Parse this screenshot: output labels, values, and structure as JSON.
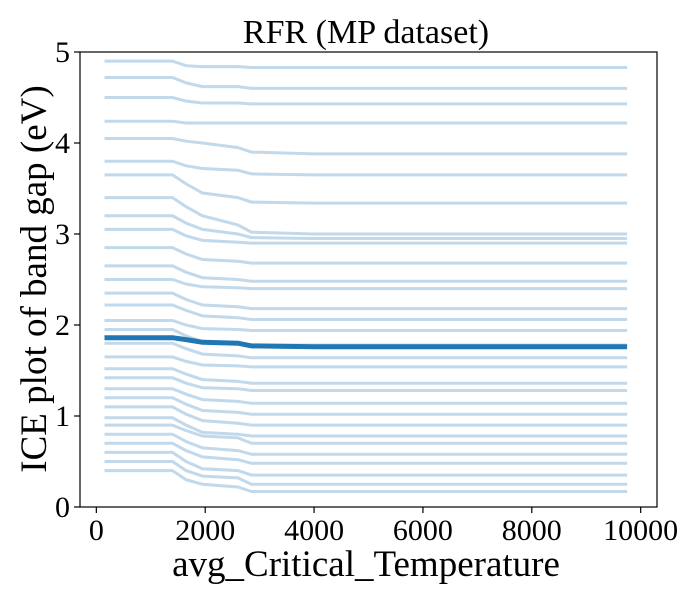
{
  "chart_data": {
    "type": "line",
    "title": "RFR (MP dataset)",
    "xlabel": "avg_Critical_Temperature",
    "ylabel": "ICE plot of band gap (eV)",
    "xlim": [
      -300,
      10300
    ],
    "ylim": [
      0,
      5
    ],
    "x_ticks": [
      0,
      2000,
      4000,
      6000,
      8000,
      10000
    ],
    "x_tick_labels": [
      "0",
      "2000",
      "4000",
      "6000",
      "8000",
      "10000"
    ],
    "y_ticks": [
      0,
      1,
      2,
      3,
      4,
      5
    ],
    "y_tick_labels": [
      "0",
      "1",
      "2",
      "3",
      "4",
      "5"
    ],
    "grid": false,
    "ice_color": "#1f77b4",
    "average_color": "#1f77b4",
    "x": [
      150,
      1400,
      1650,
      1950,
      2600,
      2850,
      4000,
      9750
    ],
    "average_series": {
      "values": [
        1.86,
        1.86,
        1.84,
        1.81,
        1.8,
        1.77,
        1.76,
        1.76
      ]
    },
    "ice_series": [
      {
        "values": [
          4.9,
          4.9,
          4.85,
          4.84,
          4.84,
          4.83,
          4.83,
          4.83
        ]
      },
      {
        "values": [
          4.72,
          4.72,
          4.66,
          4.62,
          4.62,
          4.6,
          4.6,
          4.6
        ]
      },
      {
        "values": [
          4.5,
          4.5,
          4.46,
          4.44,
          4.44,
          4.43,
          4.43,
          4.43
        ]
      },
      {
        "values": [
          4.24,
          4.24,
          4.22,
          4.22,
          4.22,
          4.22,
          4.22,
          4.22
        ]
      },
      {
        "values": [
          4.05,
          4.05,
          4.02,
          4.0,
          3.95,
          3.9,
          3.88,
          3.88
        ]
      },
      {
        "values": [
          3.8,
          3.8,
          3.75,
          3.72,
          3.7,
          3.66,
          3.65,
          3.65
        ]
      },
      {
        "values": [
          3.65,
          3.65,
          3.55,
          3.45,
          3.4,
          3.35,
          3.34,
          3.34
        ]
      },
      {
        "values": [
          3.4,
          3.4,
          3.3,
          3.2,
          3.1,
          3.02,
          3.0,
          3.0
        ]
      },
      {
        "values": [
          3.2,
          3.2,
          3.12,
          3.05,
          3.0,
          2.96,
          2.95,
          2.95
        ]
      },
      {
        "values": [
          3.05,
          3.05,
          2.98,
          2.93,
          2.91,
          2.9,
          2.9,
          2.9
        ]
      },
      {
        "values": [
          2.85,
          2.85,
          2.78,
          2.72,
          2.7,
          2.68,
          2.68,
          2.68
        ]
      },
      {
        "values": [
          2.65,
          2.65,
          2.58,
          2.52,
          2.5,
          2.48,
          2.48,
          2.48
        ]
      },
      {
        "values": [
          2.5,
          2.5,
          2.45,
          2.42,
          2.41,
          2.4,
          2.4,
          2.4
        ]
      },
      {
        "values": [
          2.35,
          2.35,
          2.28,
          2.22,
          2.2,
          2.18,
          2.18,
          2.18
        ]
      },
      {
        "values": [
          2.22,
          2.22,
          2.16,
          2.1,
          2.08,
          2.06,
          2.06,
          2.06
        ]
      },
      {
        "values": [
          2.05,
          2.05,
          2.0,
          1.96,
          1.95,
          1.94,
          1.94,
          1.94
        ]
      },
      {
        "values": [
          1.95,
          1.95,
          1.88,
          1.82,
          1.8,
          1.78,
          1.78,
          1.78
        ]
      },
      {
        "values": [
          1.8,
          1.8,
          1.74,
          1.68,
          1.66,
          1.64,
          1.64,
          1.64
        ]
      },
      {
        "values": [
          1.65,
          1.65,
          1.6,
          1.56,
          1.55,
          1.54,
          1.54,
          1.54
        ]
      },
      {
        "values": [
          1.52,
          1.52,
          1.46,
          1.4,
          1.38,
          1.36,
          1.36,
          1.36
        ]
      },
      {
        "values": [
          1.42,
          1.42,
          1.36,
          1.31,
          1.3,
          1.28,
          1.28,
          1.28
        ]
      },
      {
        "values": [
          1.3,
          1.3,
          1.24,
          1.18,
          1.16,
          1.14,
          1.14,
          1.14
        ]
      },
      {
        "values": [
          1.2,
          1.2,
          1.13,
          1.06,
          1.04,
          1.02,
          1.02,
          1.02
        ]
      },
      {
        "values": [
          1.1,
          1.1,
          1.02,
          0.95,
          0.92,
          0.9,
          0.9,
          0.9
        ]
      },
      {
        "values": [
          0.98,
          0.98,
          0.9,
          0.82,
          0.8,
          0.78,
          0.78,
          0.78
        ]
      },
      {
        "values": [
          0.9,
          0.9,
          0.84,
          0.78,
          0.76,
          0.7,
          0.7,
          0.7
        ]
      },
      {
        "values": [
          0.8,
          0.8,
          0.72,
          0.65,
          0.62,
          0.58,
          0.58,
          0.58
        ]
      },
      {
        "values": [
          0.7,
          0.7,
          0.62,
          0.55,
          0.52,
          0.48,
          0.48,
          0.48
        ]
      },
      {
        "values": [
          0.6,
          0.6,
          0.5,
          0.42,
          0.4,
          0.35,
          0.35,
          0.35
        ]
      },
      {
        "values": [
          0.5,
          0.5,
          0.4,
          0.34,
          0.32,
          0.25,
          0.25,
          0.25
        ]
      },
      {
        "values": [
          0.4,
          0.4,
          0.3,
          0.25,
          0.22,
          0.17,
          0.17,
          0.17
        ]
      }
    ]
  }
}
